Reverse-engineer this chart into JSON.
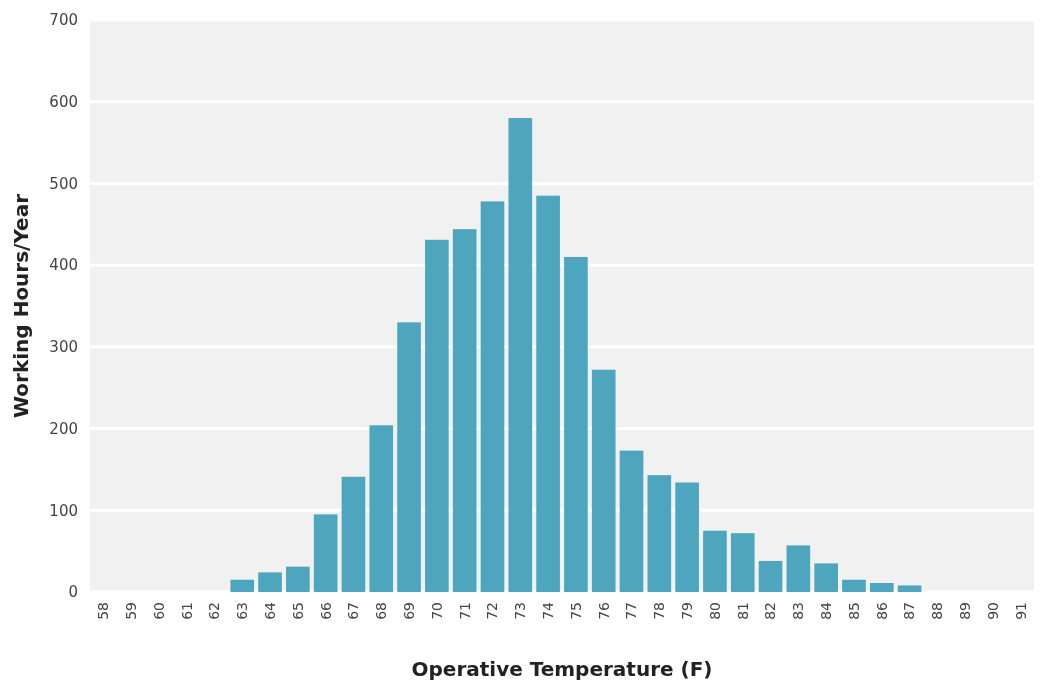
{
  "chart_data": {
    "type": "bar",
    "xlabel": "Operative Temperature (F)",
    "ylabel": "Working Hours/Year",
    "categories": [
      "58",
      "59",
      "60",
      "61",
      "62",
      "63",
      "64",
      "65",
      "66",
      "67",
      "68",
      "69",
      "70",
      "71",
      "72",
      "73",
      "74",
      "75",
      "76",
      "77",
      "78",
      "79",
      "80",
      "81",
      "82",
      "83",
      "84",
      "85",
      "86",
      "87",
      "88",
      "89",
      "90",
      "91"
    ],
    "values": [
      0,
      0,
      0,
      0,
      0,
      15,
      24,
      31,
      95,
      141,
      204,
      330,
      431,
      444,
      478,
      580,
      485,
      410,
      272,
      173,
      143,
      134,
      75,
      72,
      38,
      57,
      35,
      15,
      11,
      8,
      0,
      0,
      0,
      0
    ],
    "color": "#4ea5be",
    "ylim": [
      0,
      700
    ],
    "yticks": [
      0,
      100,
      200,
      300,
      400,
      500,
      600,
      700
    ],
    "grid": "y"
  }
}
